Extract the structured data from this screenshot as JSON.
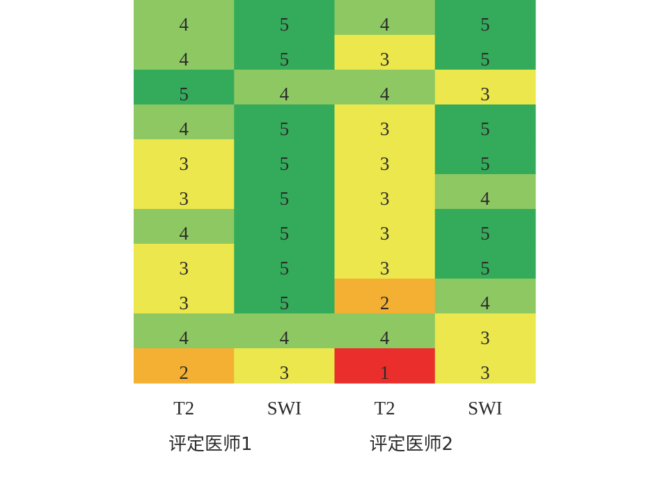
{
  "chart_data": {
    "type": "heatmap",
    "columns": [
      "T2",
      "SWI",
      "T2",
      "SWI"
    ],
    "groups": [
      {
        "label": "评定医师1",
        "columns": [
          0,
          1
        ]
      },
      {
        "label": "评定医师2",
        "columns": [
          2,
          3
        ]
      }
    ],
    "values": [
      [
        4,
        5,
        4,
        5
      ],
      [
        4,
        5,
        3,
        5
      ],
      [
        5,
        4,
        4,
        3
      ],
      [
        4,
        5,
        3,
        5
      ],
      [
        3,
        5,
        3,
        5
      ],
      [
        3,
        5,
        3,
        4
      ],
      [
        4,
        5,
        3,
        5
      ],
      [
        3,
        5,
        3,
        5
      ],
      [
        3,
        5,
        2,
        4
      ],
      [
        4,
        4,
        4,
        3
      ],
      [
        2,
        3,
        1,
        3
      ]
    ],
    "color_scale": {
      "1": "#ea2e2b",
      "2": "#f4b033",
      "3": "#ebe74c",
      "4": "#8dc862",
      "5": "#33ab5a"
    }
  }
}
